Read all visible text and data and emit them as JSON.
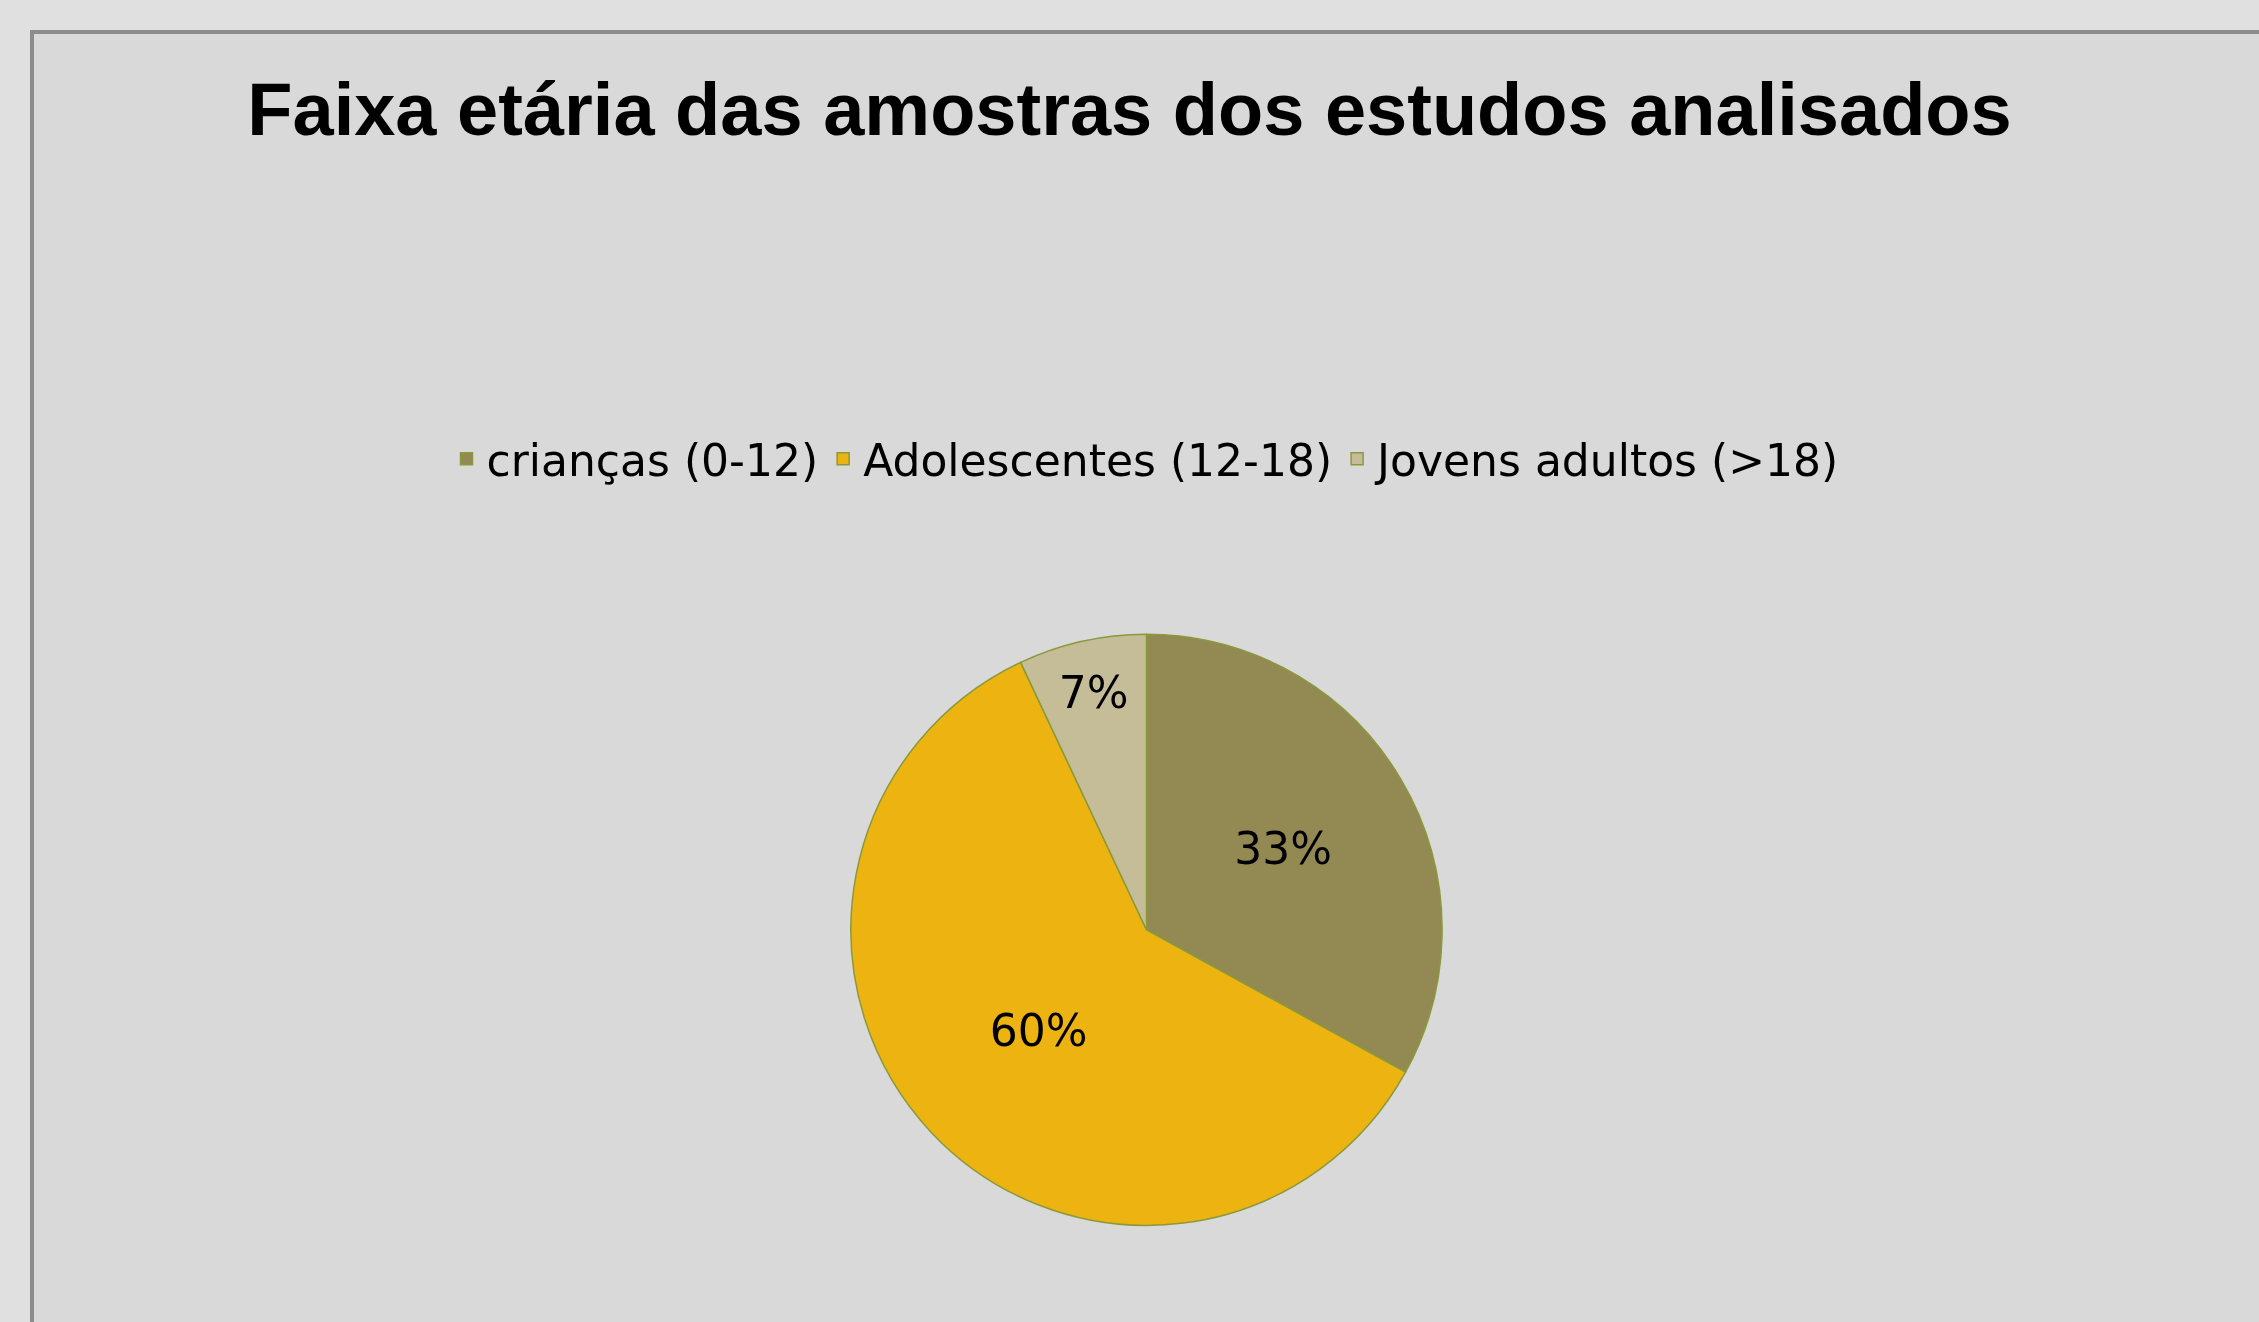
{
  "chart_data": {
    "type": "pie",
    "title": "Faixa etária das amostras dos estudos analisados",
    "categories": [
      "crianças (0-12)",
      "Adolescentes (12-18)",
      "Jovens adultos (>18)"
    ],
    "values": [
      33,
      60,
      7
    ],
    "value_labels": [
      "33%",
      "60%",
      "7%"
    ],
    "colors": [
      "#938953",
      "#edb311",
      "#c4bd97"
    ],
    "legend": "top"
  }
}
